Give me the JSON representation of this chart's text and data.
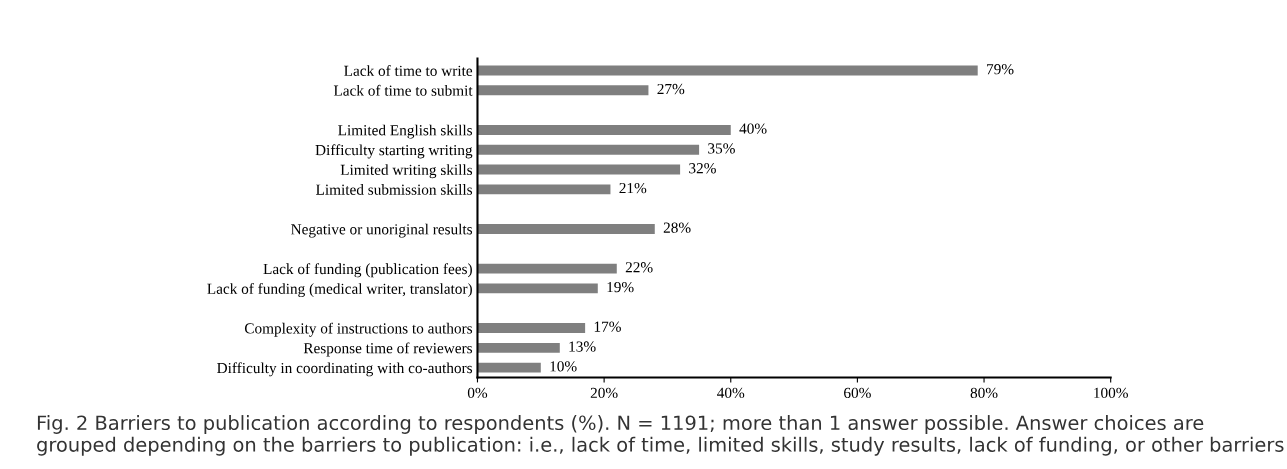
{
  "chart_data": {
    "type": "bar",
    "orientation": "horizontal",
    "categories": [
      "Lack of time to write",
      "Lack of time to submit",
      null,
      "Limited English skills",
      "Difficulty starting writing",
      "Limited writing skills",
      "Limited submission skills",
      null,
      "Negative or unoriginal results",
      null,
      "Lack of funding (publication fees)",
      "Lack of funding (medical writer, translator)",
      null,
      "Complexity of instructions to authors",
      "Response time of reviewers",
      "Difficulty in coordinating with co-authors"
    ],
    "values": [
      79,
      27,
      null,
      40,
      35,
      32,
      21,
      null,
      28,
      null,
      22,
      19,
      null,
      17,
      13,
      10
    ],
    "value_labels": [
      "79%",
      "27%",
      null,
      "40%",
      "35%",
      "32%",
      "21%",
      null,
      "28%",
      null,
      "22%",
      "19%",
      null,
      "17%",
      "13%",
      "10%"
    ],
    "color": "#7f7f7f",
    "xlim": [
      0,
      100
    ],
    "xticks": [
      {
        "value": 0,
        "label": "0%"
      },
      {
        "value": 20,
        "label": "20%"
      },
      {
        "value": 40,
        "label": "40%"
      },
      {
        "value": 60,
        "label": "60%"
      },
      {
        "value": 80,
        "label": "80%"
      },
      {
        "value": 100,
        "label": "100%"
      }
    ],
    "grid": false,
    "legend": false,
    "annotations": [
      "Fig. 2 Barriers to publication according to respondents (%). N = 1191; more than 1 answer possible. Answer choices are grouped depending on the barriers to publication: i.e., lack of time, limited skills, study results, lack of funding, or other barriers"
    ]
  }
}
